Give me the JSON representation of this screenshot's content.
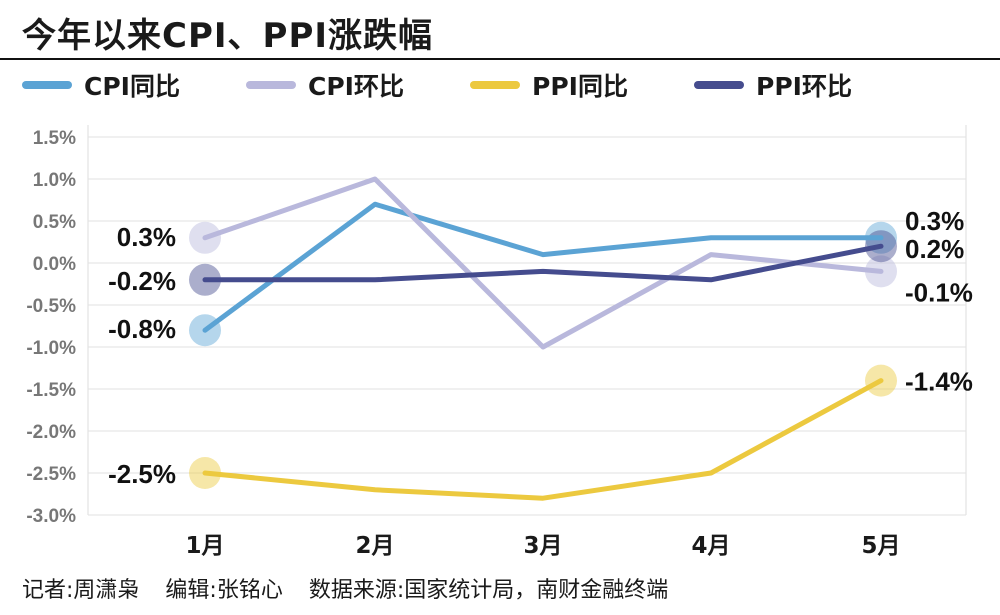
{
  "title": "今年以来CPI、PPI涨跌幅",
  "footer": {
    "reporter": "记者:周潇枭",
    "editor": "编辑:张铭心",
    "source": "数据来源:国家统计局，南财金融终端"
  },
  "chart_data": {
    "type": "line",
    "title": "今年以来CPI、PPI涨跌幅",
    "categories": [
      "1月",
      "2月",
      "3月",
      "4月",
      "5月"
    ],
    "ylim": [
      -3.0,
      1.5
    ],
    "yticks": [
      1.5,
      1.0,
      0.5,
      0.0,
      -0.5,
      -1.0,
      -1.5,
      -2.0,
      -2.5,
      -3.0
    ],
    "ytick_labels": [
      "1.5%",
      "1.0%",
      "0.5%",
      "0.0%",
      "-0.5%",
      "-1.0%",
      "-1.5%",
      "-2.0%",
      "-2.5%",
      "-3.0%"
    ],
    "grid": true,
    "legend_position": "top",
    "series": [
      {
        "name": "CPI同比",
        "color": "#5ba3d4",
        "values": [
          -0.8,
          0.7,
          0.1,
          0.3,
          0.3
        ],
        "start_label": "-0.8%",
        "end_label": "0.3%"
      },
      {
        "name": "CPI环比",
        "color": "#b9b8dc",
        "values": [
          0.3,
          1.0,
          -1.0,
          0.1,
          -0.1
        ],
        "start_label": "0.3%",
        "end_label": "-0.1%"
      },
      {
        "name": "PPI同比",
        "color": "#ecc93f",
        "values": [
          -2.5,
          -2.7,
          -2.8,
          -2.5,
          -1.4
        ],
        "start_label": "-2.5%",
        "end_label": "-1.4%"
      },
      {
        "name": "PPI环比",
        "color": "#454c8e",
        "values": [
          -0.2,
          -0.2,
          -0.1,
          -0.2,
          0.2
        ],
        "start_label": "-0.2%",
        "end_label": "0.2%"
      }
    ]
  }
}
